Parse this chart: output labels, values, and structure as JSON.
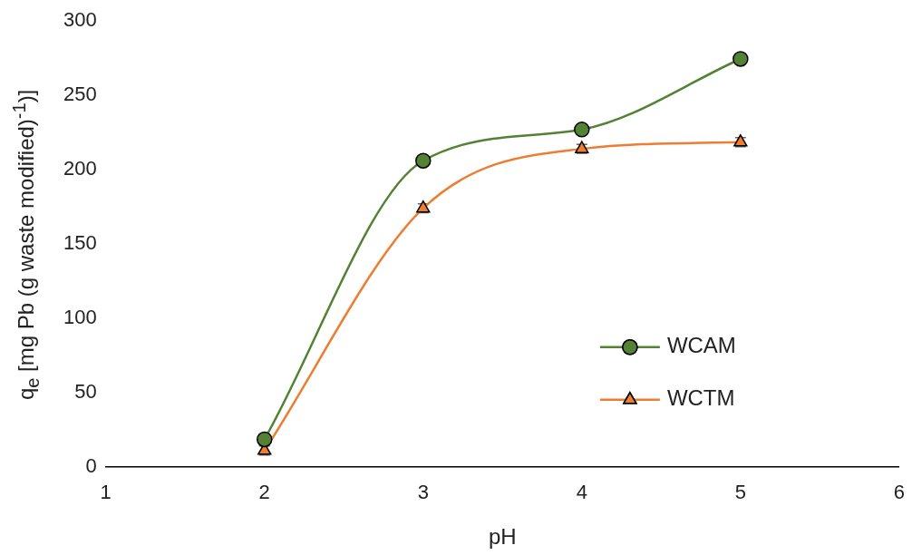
{
  "chart_data": {
    "type": "line",
    "xlabel": "pH",
    "ylabel": "q$_{e}$ [mg Pb (g waste modified)$^{-1}$)]",
    "x": [
      2,
      3,
      4,
      5
    ],
    "xlim": [
      1,
      6
    ],
    "xticks": [
      1,
      2,
      3,
      4,
      5,
      6
    ],
    "ylim": [
      0,
      300
    ],
    "yticks": [
      0,
      50,
      100,
      150,
      200,
      250,
      300
    ],
    "grid": false,
    "legend": "bottom right",
    "series": [
      {
        "name": "WCAM",
        "color": "#548235",
        "marker": "circle",
        "values": [
          18.5,
          206,
          227,
          274.5
        ],
        "errors": [
          2,
          2,
          2,
          2
        ]
      },
      {
        "name": "WCTM",
        "color": "#ed7d31",
        "marker": "triangle",
        "values": [
          11,
          174,
          214,
          218.5
        ],
        "errors": [
          3,
          3,
          3,
          3
        ]
      }
    ]
  }
}
